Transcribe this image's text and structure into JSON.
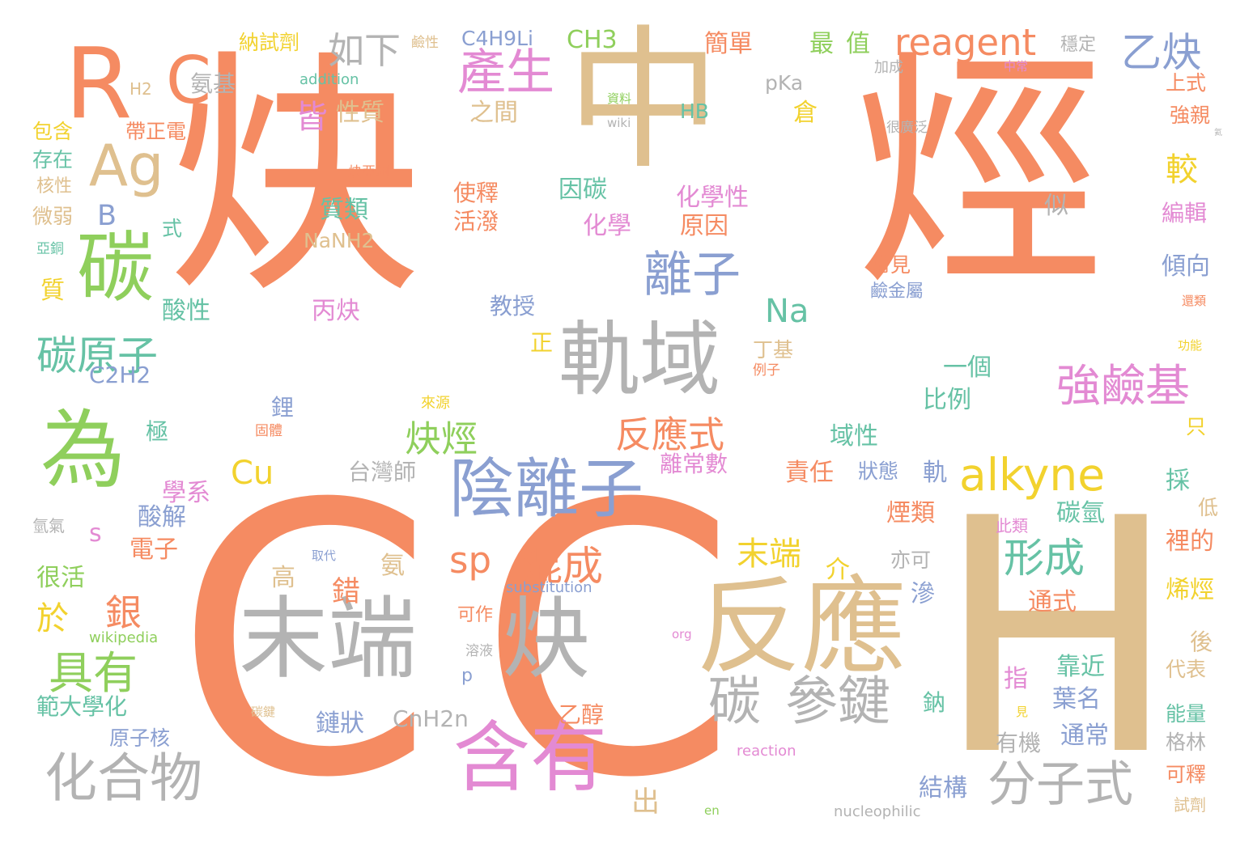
{
  "palette": {
    "orange": "#f58b62",
    "tan": "#dfc08f",
    "gray": "#b3b3b3",
    "green": "#8fcf5c",
    "pink": "#e38ad3",
    "blue": "#8a9fd1",
    "yellow": "#f2d22e",
    "teal": "#66c2a5",
    "red": "#fc8d62"
  },
  "words": [
    "炔",
    "烴",
    "中",
    "C",
    "C",
    "H",
    "R",
    "C",
    "Ag",
    "碳",
    "為",
    "末端",
    "炔",
    "反應",
    "含有",
    "軌域",
    "陰離子",
    "碳",
    "參鍵",
    "產生",
    "離子",
    "化合物",
    "分子式",
    "具有",
    "碳原子",
    "強鹼基",
    "alkyne",
    "reagent",
    "乙炔",
    "如下",
    "最",
    "值",
    "銀",
    "混成",
    "sp",
    "形成",
    "末端",
    "炔烴",
    "反應式",
    "皆",
    "性質",
    "Na",
    "B",
    "Cu",
    "Ag",
    "CH3",
    "C4H9Li",
    "pKa",
    "HB",
    "H2",
    "addition",
    "nucleophilic",
    "substitution",
    "wikipedia",
    "reaction",
    "CnH2n",
    "C2H2",
    "NaNH2",
    "納試劑",
    "鹼性",
    "氨基",
    "包含",
    "帶正電",
    "存在",
    "核性",
    "微弱",
    "亞銅",
    "質",
    "酸性",
    "極",
    "鋰",
    "來源",
    "固體",
    "學系",
    "酸解",
    "s",
    "電子",
    "很活",
    "於",
    "範大學化",
    "原子核",
    "化學性",
    "化學",
    "原因",
    "因碳",
    "質類",
    "使釋",
    "活潑",
    "之間",
    "簡單",
    "穩定",
    "加成",
    "中常",
    "資料",
    "wiki",
    "倉",
    "上式",
    "強親",
    "很廣泛",
    "炔亞銅",
    "編輯",
    "傾向",
    "常見",
    "鹼金屬",
    "丁基",
    "例子",
    "功能",
    "還類",
    "似",
    "較",
    "式",
    "一個",
    "比例",
    "域性",
    "只",
    "責任",
    "狀態",
    "軌",
    "採",
    "煙類",
    "碳氫",
    "亦可",
    "此類",
    "低",
    "裡的",
    "烯烴",
    "通式",
    "介",
    "錯",
    "高",
    "氨",
    "滲",
    "取代",
    "可作",
    "溶液",
    "org",
    "後",
    "代表",
    "靠近",
    "葉名",
    "指",
    "鈉",
    "碳鍵",
    "見",
    "能量",
    "格林",
    "有機",
    "通常",
    "結構",
    "出",
    "可釋",
    "試劑",
    "en",
    "鏈狀",
    "乙醇",
    "p",
    "正",
    "丙炔",
    "教授",
    "離常數",
    "台灣師",
    "氫氣",
    "氦"
  ]
}
